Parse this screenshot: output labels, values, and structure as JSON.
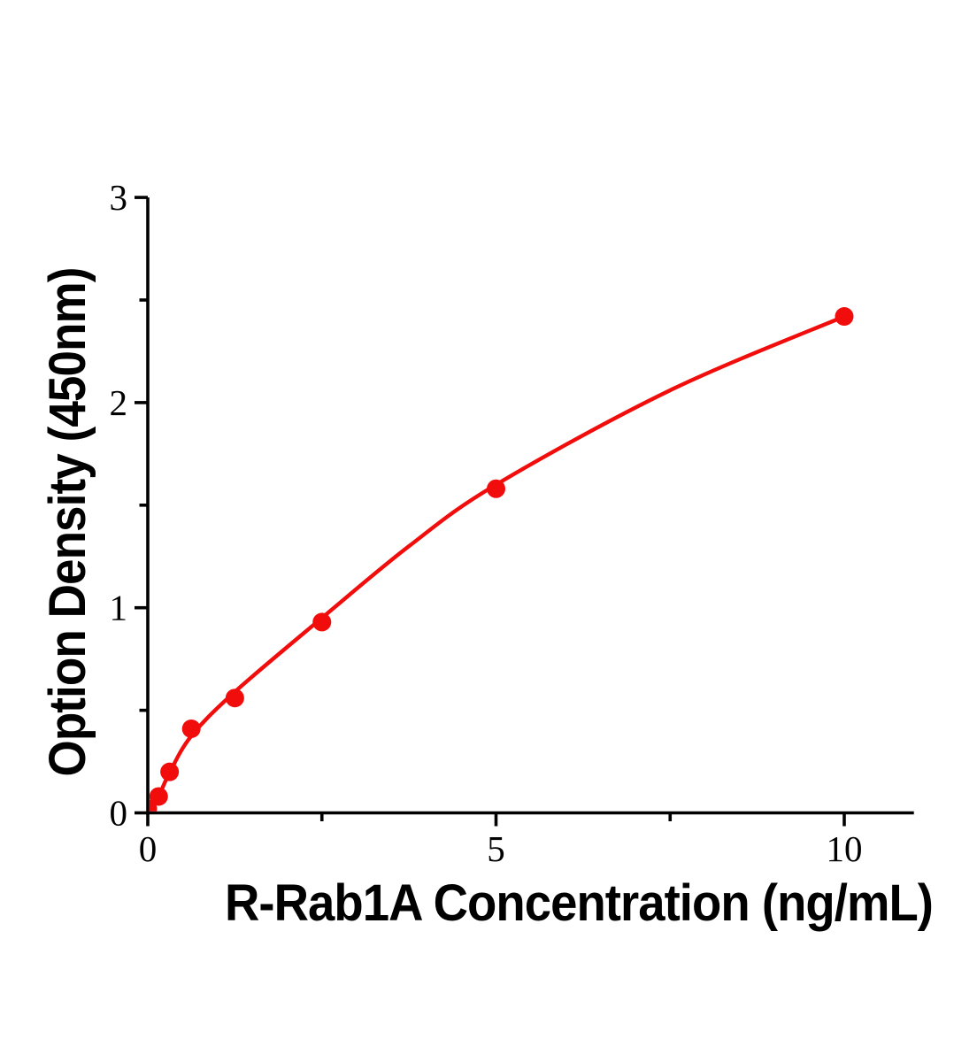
{
  "figure": {
    "background_color": "#ffffff",
    "axis_color": "#000000",
    "accent_color": "#f20d0d"
  },
  "chart_data": {
    "type": "scatter",
    "title": "",
    "xlabel": "R-Rab1A Concentration (ng/mL)",
    "ylabel": "Option Density (450nm)",
    "x": [
      0,
      0.156,
      0.313,
      0.625,
      1.25,
      2.5,
      5,
      10
    ],
    "y": [
      0.02,
      0.08,
      0.2,
      0.41,
      0.56,
      0.93,
      1.58,
      2.42
    ],
    "xlim": [
      0,
      11
    ],
    "ylim": [
      0,
      3
    ],
    "x_major_ticks": [
      0,
      5,
      10
    ],
    "x_minor_ticks": [
      2.5,
      7.5
    ],
    "y_major_ticks": [
      0,
      1,
      2,
      3
    ],
    "y_minor_ticks": [
      0.5,
      1.5,
      2.5
    ],
    "grid": false,
    "legend": "none",
    "marker": {
      "shape": "circle",
      "color": "#f20d0d"
    },
    "line": {
      "color": "#f20d0d",
      "style": "solid"
    },
    "axis_color": "#000000",
    "fit_curve_samples": {
      "x": [
        0,
        0.156,
        0.313,
        0.625,
        1.25,
        2.5,
        3.75,
        5,
        7.5,
        10
      ],
      "y": [
        0.0,
        0.082,
        0.196,
        0.375,
        0.59,
        0.95,
        1.3,
        1.6,
        2.06,
        2.42
      ]
    }
  }
}
